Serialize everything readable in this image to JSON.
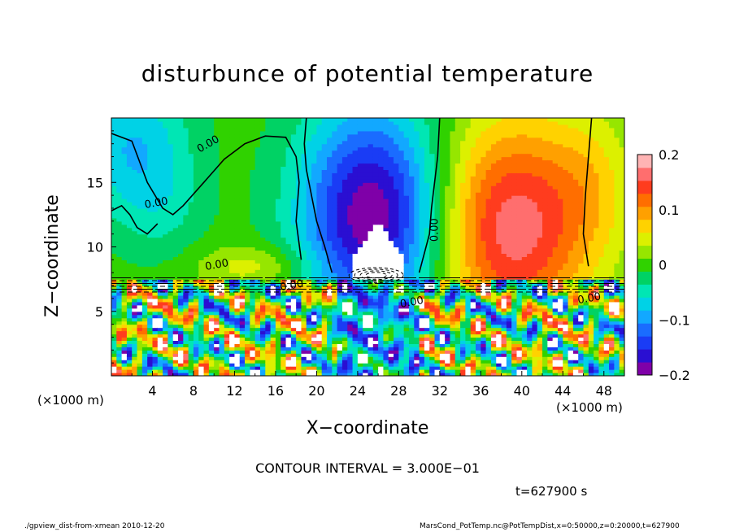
{
  "chart_data": {
    "type": "heatmap",
    "title": "disturbunce of potential temperature",
    "xlabel": "X−coordinate",
    "ylabel": "Z−coordinate",
    "x_unit_label": "(×1000 m)",
    "xlim": [
      0,
      50
    ],
    "ylim": [
      0,
      20
    ],
    "x_ticks": [
      4,
      8,
      12,
      16,
      20,
      24,
      28,
      32,
      36,
      40,
      44,
      48
    ],
    "y_ticks": [
      5,
      10,
      15
    ],
    "colorbar": {
      "range": [
        -0.2,
        0.2
      ],
      "ticks": [
        "0.2",
        "0.1",
        "0",
        "−0.1",
        "−0.2"
      ],
      "tick_values": [
        0.2,
        0.1,
        0,
        -0.1,
        -0.2
      ],
      "colors": [
        "#7f00a8",
        "#2a0fd2",
        "#1a3cf5",
        "#1a6cff",
        "#12a8ff",
        "#00d2e6",
        "#00e6b4",
        "#00d264",
        "#30d200",
        "#96e600",
        "#dcf000",
        "#ffd200",
        "#ffa000",
        "#ff6e00",
        "#ff3c1e",
        "#ff6e6e",
        "#ffb4b4"
      ]
    },
    "contour_labels": [
      "0.00",
      "0.00",
      "0.00",
      "0.00",
      "0.00",
      "0.00",
      "0.00"
    ],
    "annotations": {
      "contour_interval": "CONTOUR INTERVAL = 3.000E−01",
      "time": "t=627900 s"
    }
  },
  "footer": {
    "left": "./gpview_dist-from-xmean  2010-12-20",
    "right": "MarsCond_PotTemp.nc@PotTempDist,x=0:50000,z=0:20000,t=627900"
  },
  "colors": {
    "background": "#ffffff",
    "frame": "#000000"
  }
}
